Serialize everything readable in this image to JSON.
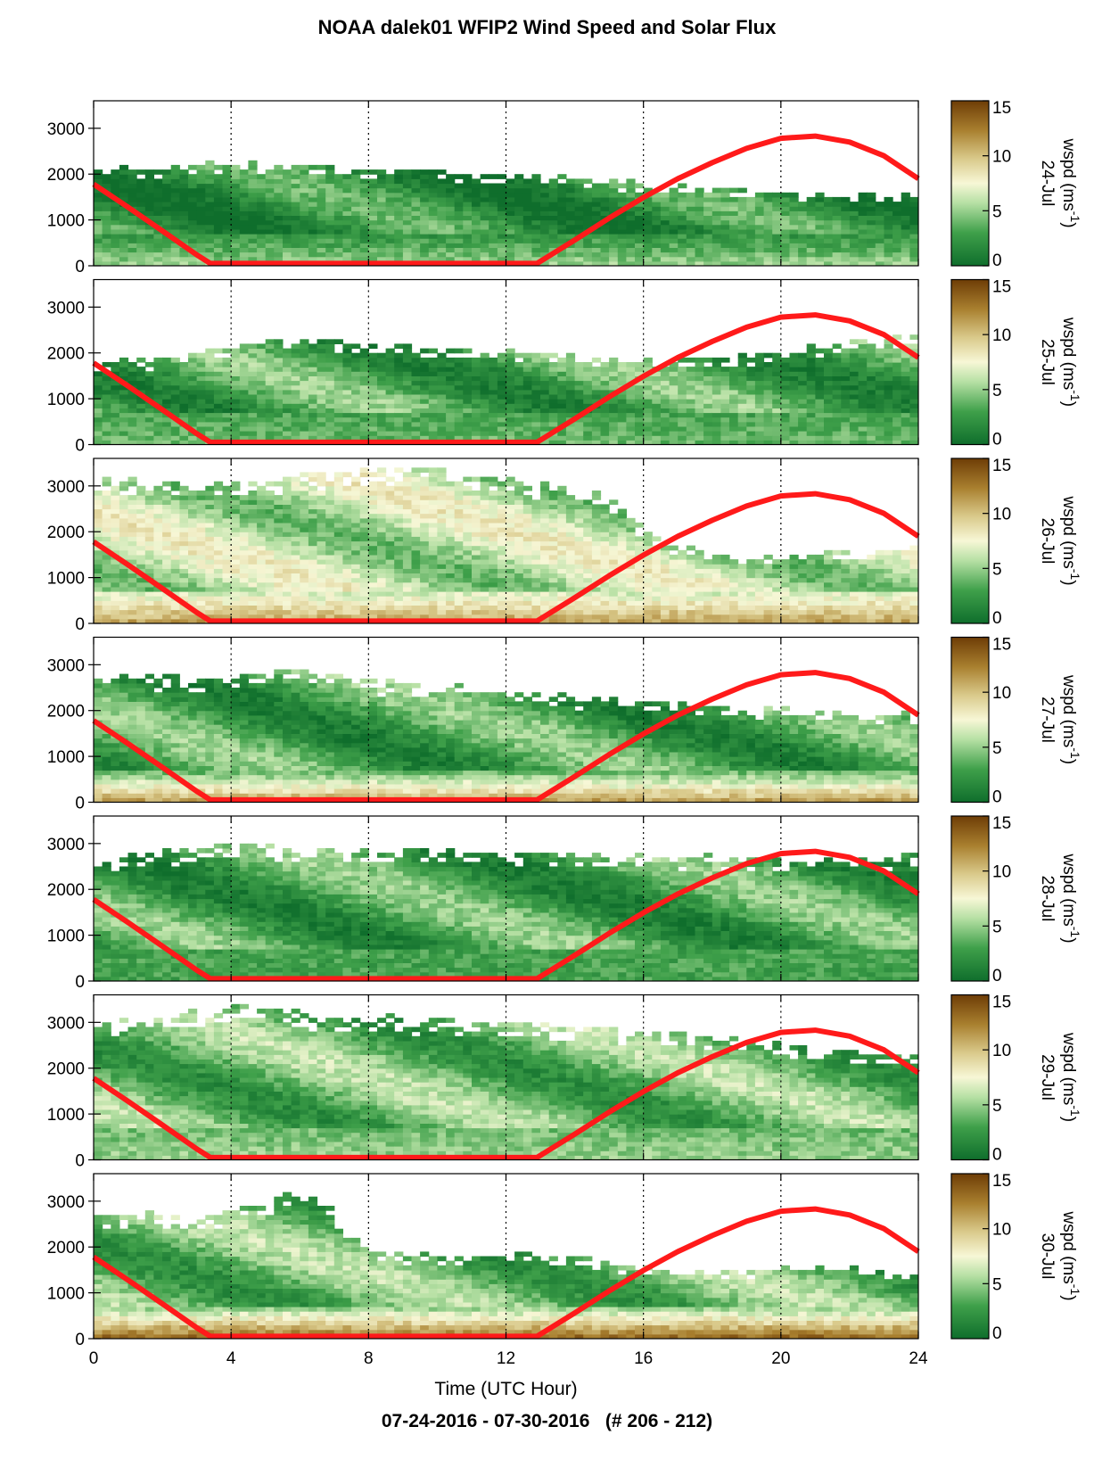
{
  "page": {
    "title": "NOAA dalek01 WFIP2 Wind Speed and Solar Flux",
    "footer": "07-24-2016 - 07-30-2016   (# 206 - 212)",
    "xlabel": "Time (UTC Hour)"
  },
  "chart_data": {
    "type": "heatmap",
    "title": "NOAA dalek01 WFIP2 Wind Speed and Solar Flux",
    "xlabel": "Time (UTC Hour)",
    "xlim": [
      0,
      24
    ],
    "xticks": [
      0,
      4,
      8,
      12,
      16,
      20,
      24
    ],
    "ylim": [
      0,
      3600
    ],
    "yticks": [
      0,
      1000,
      2000,
      3000
    ],
    "colorbar": {
      "label": "wspd (ms",
      "label_sup": "-1",
      "label_end": ")",
      "range": [
        0,
        15
      ],
      "ticks": [
        0,
        5,
        10,
        15
      ]
    },
    "grid": "vertical dotted",
    "colors": {
      "low": "#0f6e2c",
      "mid": "#f7f7d6",
      "high": "#6e3d06",
      "solar": "#ff1a1a"
    },
    "panels": [
      {
        "date": "24-Jul",
        "top_m": [
          2000,
          2100,
          2150,
          2200,
          2250,
          2200,
          2150,
          2100,
          2050,
          2050,
          2100,
          2000,
          1950,
          1900,
          1850,
          1800,
          1750,
          1700,
          1650,
          1600,
          1550,
          1550,
          1500,
          1500,
          1500
        ],
        "low_wspd": 5,
        "core_wspd": 2
      },
      {
        "date": "25-Jul",
        "top_m": [
          1700,
          1800,
          1850,
          1900,
          2100,
          2250,
          2250,
          2200,
          2150,
          2100,
          2050,
          2050,
          2000,
          1950,
          1900,
          1850,
          1800,
          1800,
          1850,
          1900,
          2000,
          2100,
          2200,
          2300,
          2400
        ],
        "low_wspd": 4,
        "core_wspd": 3
      },
      {
        "date": "26-Jul",
        "top_m": [
          3100,
          3100,
          3050,
          3000,
          3000,
          3000,
          3200,
          3250,
          3300,
          3350,
          3300,
          3250,
          3100,
          3000,
          2900,
          2700,
          2000,
          1600,
          1500,
          1400,
          1400,
          1500,
          1500,
          1600,
          1600
        ],
        "low_wspd": 11,
        "core_wspd": 6
      },
      {
        "date": "27-Jul",
        "top_m": [
          2700,
          2700,
          2700,
          2650,
          2700,
          2800,
          2850,
          2700,
          2600,
          2550,
          2500,
          2450,
          2400,
          2300,
          2250,
          2200,
          2150,
          2100,
          2050,
          2000,
          2000,
          1950,
          1900,
          1900,
          1900
        ],
        "low_wspd": 11,
        "core_wspd": 3
      },
      {
        "date": "28-Jul",
        "top_m": [
          2500,
          2700,
          2800,
          2850,
          2900,
          2900,
          2850,
          2850,
          2800,
          2800,
          2800,
          2800,
          2800,
          2750,
          2750,
          2700,
          2700,
          2700,
          2650,
          2650,
          2600,
          2600,
          2600,
          2650,
          2700
        ],
        "low_wspd": 3,
        "core_wspd": 3
      },
      {
        "date": "29-Jul",
        "top_m": [
          2900,
          3000,
          3100,
          3200,
          3300,
          3200,
          3150,
          3100,
          3100,
          3050,
          3000,
          2950,
          2950,
          2900,
          2850,
          2800,
          2750,
          2700,
          2650,
          2600,
          2500,
          2400,
          2300,
          2250,
          2200
        ],
        "low_wspd": 5,
        "core_wspd": 4
      },
      {
        "date": "30-Jul",
        "top_m": [
          2700,
          2700,
          2650,
          2600,
          2700,
          3000,
          3100,
          2800,
          1900,
          1800,
          1800,
          1750,
          1800,
          1800,
          1750,
          1600,
          1500,
          1400,
          1400,
          1400,
          1500,
          1500,
          1450,
          1400,
          1400
        ],
        "low_wspd": 13,
        "core_wspd": 4
      }
    ],
    "solar_flux": {
      "x": [
        0,
        1,
        2,
        3,
        3.4,
        4,
        6,
        8,
        10,
        12,
        12.9,
        14,
        15,
        16,
        17,
        18,
        19,
        20,
        21,
        22,
        23,
        24
      ],
      "y": [
        1780,
        1280,
        760,
        240,
        50,
        50,
        50,
        50,
        50,
        50,
        50,
        560,
        1040,
        1490,
        1900,
        2250,
        2560,
        2780,
        2830,
        2700,
        2400,
        1900
      ]
    }
  }
}
